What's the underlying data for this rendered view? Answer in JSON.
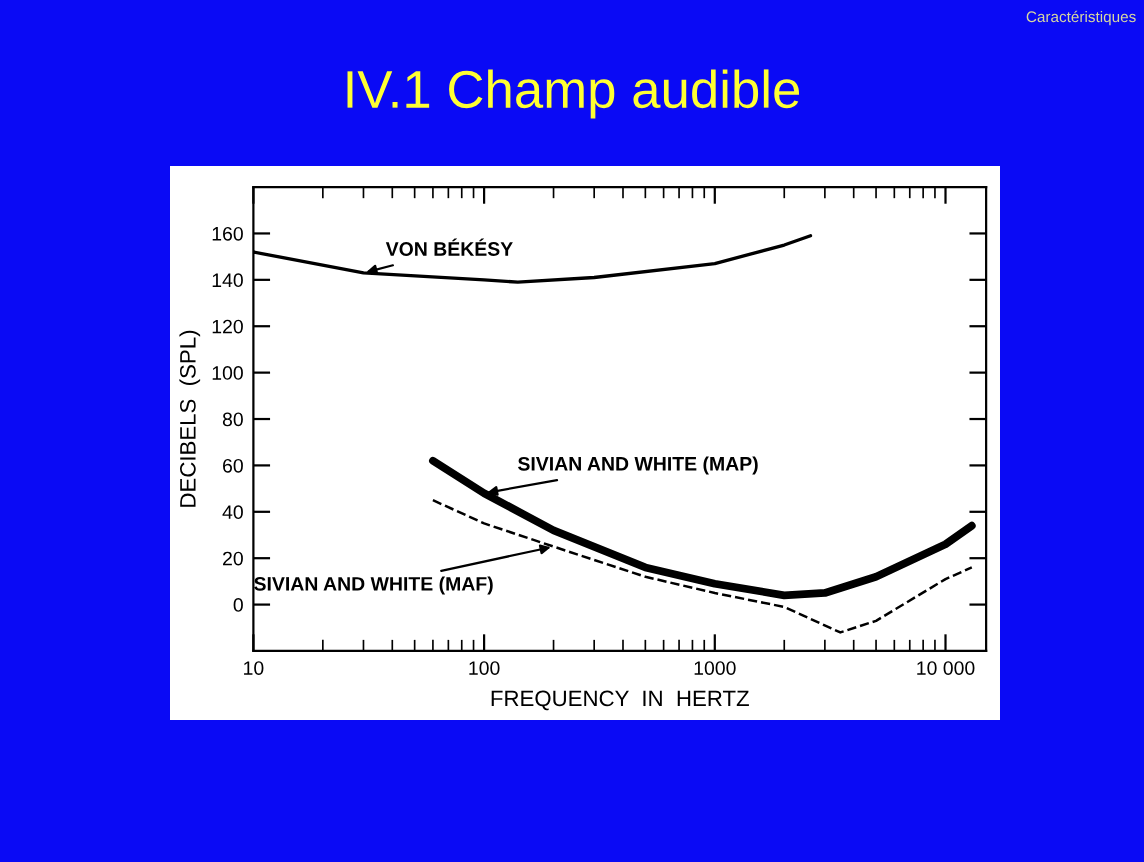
{
  "chart_data": {
    "type": "line",
    "title": "IV.1 Champ audible",
    "subtitle": "Caractéristiques",
    "xlabel": "FREQUENCY  IN  HERTZ",
    "ylabel": "DECIBELS  (SPL)",
    "log": "x",
    "grid": false,
    "legend": false,
    "xlim": [
      10,
      15000
    ],
    "xticks": [
      10,
      100,
      1000,
      {
        "value": 10000,
        "label": "10 000"
      }
    ],
    "ylim": [
      -20,
      180
    ],
    "yticks": [
      0,
      20,
      40,
      60,
      80,
      100,
      120,
      140,
      160
    ],
    "series": [
      {
        "name": "VON BÉKÉSY",
        "color": "#000000",
        "line_style": "solid",
        "x": [
          10,
          30,
          100,
          140,
          300,
          1000,
          2000,
          2600
        ],
        "values": [
          152,
          143,
          140,
          139,
          141,
          147,
          155,
          159
        ]
      },
      {
        "name": "SIVIAN AND WHITE (MAP)",
        "color": "#000000",
        "line_style": "solid",
        "x": [
          60,
          100,
          200,
          500,
          1000,
          2000,
          3000,
          5000,
          10000,
          13000
        ],
        "values": [
          62,
          48,
          32,
          16,
          9,
          4,
          5,
          12,
          26,
          34
        ]
      },
      {
        "name": "SIVIAN AND WHITE (MAF)",
        "color": "#000000",
        "line_style": "dashed",
        "x": [
          60,
          100,
          200,
          500,
          1000,
          2000,
          3500,
          5000,
          10000,
          13000
        ],
        "values": [
          45,
          35,
          25,
          12,
          5,
          -1,
          -12,
          -7,
          11,
          16
        ]
      }
    ]
  }
}
